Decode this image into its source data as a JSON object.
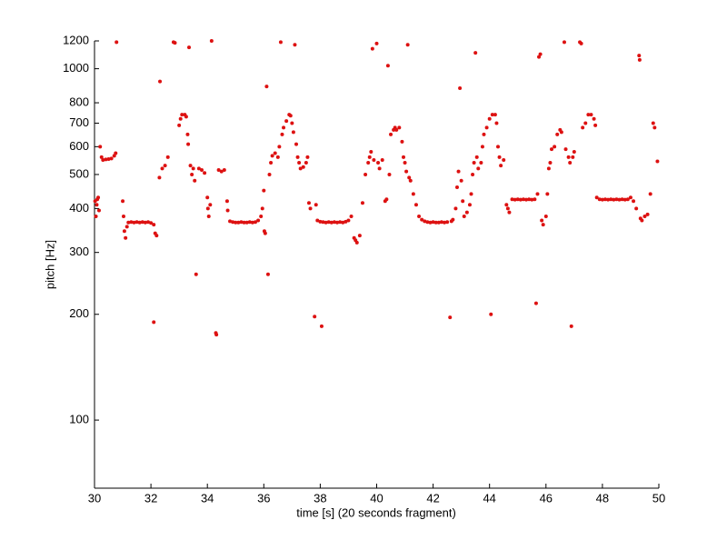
{
  "chart_data": {
    "type": "scatter",
    "xlabel": "time [s] (20 seconds fragment)",
    "ylabel": "pitch [Hz]",
    "color": "#dd1111",
    "log_y": true,
    "xlim": [
      30,
      50
    ],
    "xticks": [
      30,
      32,
      34,
      36,
      38,
      40,
      42,
      44,
      46,
      48,
      50
    ],
    "ylim": [
      64,
      1200
    ],
    "yticks": [
      100,
      200,
      300,
      400,
      500,
      600,
      700,
      800,
      1000,
      1200
    ],
    "x": [
      30.02,
      30.05,
      30.08,
      30.1,
      30.13,
      30.16,
      30.2,
      30.25,
      30.3,
      30.4,
      30.5,
      30.6,
      30.7,
      30.75,
      30.78,
      31.0,
      31.03,
      31.06,
      31.1,
      31.15,
      31.2,
      31.3,
      31.4,
      31.5,
      31.6,
      31.7,
      31.8,
      31.9,
      32.0,
      32.1,
      32.15,
      32.2,
      32.1,
      32.3,
      32.32,
      32.4,
      32.5,
      32.6,
      32.8,
      32.85,
      33.0,
      33.05,
      33.1,
      33.2,
      33.25,
      33.3,
      33.32,
      33.35,
      33.4,
      33.45,
      33.5,
      33.55,
      33.6,
      33.7,
      33.8,
      33.9,
      34.0,
      34.02,
      34.05,
      34.1,
      34.15,
      34.3,
      34.32,
      34.4,
      34.5,
      34.6,
      34.7,
      34.72,
      34.8,
      34.9,
      35.0,
      35.1,
      35.2,
      35.3,
      35.4,
      35.5,
      35.6,
      35.7,
      35.8,
      35.9,
      35.95,
      36.0,
      36.02,
      36.05,
      36.1,
      36.15,
      36.2,
      36.25,
      36.3,
      36.4,
      36.5,
      36.55,
      36.6,
      36.65,
      36.7,
      36.8,
      36.9,
      36.95,
      37.0,
      37.05,
      37.1,
      37.15,
      37.2,
      37.25,
      37.3,
      37.4,
      37.5,
      37.55,
      37.6,
      37.65,
      37.8,
      37.85,
      37.9,
      38.0,
      38.05,
      38.1,
      38.2,
      38.3,
      38.4,
      38.5,
      38.6,
      38.7,
      38.8,
      38.9,
      39.0,
      39.1,
      39.2,
      39.25,
      39.3,
      39.4,
      39.5,
      39.6,
      39.7,
      39.75,
      39.8,
      39.85,
      39.9,
      40.0,
      40.05,
      40.1,
      40.2,
      40.3,
      40.35,
      40.4,
      40.45,
      40.5,
      40.6,
      40.65,
      40.7,
      40.8,
      40.9,
      40.95,
      41.1,
      41.0,
      41.05,
      41.15,
      41.2,
      41.3,
      41.4,
      41.5,
      41.6,
      41.7,
      41.8,
      41.9,
      42.0,
      42.1,
      42.2,
      42.3,
      42.4,
      42.5,
      42.6,
      42.65,
      42.7,
      42.8,
      42.85,
      42.9,
      42.95,
      43.0,
      43.05,
      43.1,
      43.2,
      43.3,
      43.35,
      43.4,
      43.45,
      43.5,
      43.55,
      43.6,
      43.7,
      43.75,
      43.8,
      43.9,
      44.0,
      44.05,
      44.1,
      44.2,
      44.25,
      44.3,
      44.35,
      44.4,
      44.5,
      44.6,
      44.65,
      44.7,
      44.8,
      44.9,
      45.0,
      45.1,
      45.2,
      45.3,
      45.4,
      45.5,
      45.6,
      45.65,
      45.7,
      45.75,
      45.8,
      45.85,
      45.9,
      46.0,
      46.05,
      46.1,
      46.15,
      46.2,
      46.3,
      46.4,
      46.5,
      46.55,
      46.65,
      46.7,
      46.8,
      46.85,
      46.9,
      46.95,
      47.0,
      47.2,
      47.25,
      47.3,
      47.4,
      47.5,
      47.6,
      47.7,
      47.75,
      47.8,
      47.9,
      48.0,
      48.1,
      48.2,
      48.3,
      48.4,
      48.5,
      48.6,
      48.7,
      48.8,
      48.9,
      49.0,
      49.1,
      49.2,
      49.3,
      49.32,
      49.35,
      49.4,
      49.5,
      49.6,
      49.7,
      49.8,
      49.85,
      49.95
    ],
    "values": [
      420,
      380,
      410,
      425,
      430,
      395,
      600,
      560,
      550,
      552,
      553,
      555,
      565,
      575,
      1190,
      420,
      380,
      345,
      330,
      355,
      365,
      366,
      365,
      366,
      365,
      366,
      365,
      366,
      364,
      360,
      340,
      335,
      190,
      490,
      920,
      520,
      530,
      560,
      1190,
      1185,
      690,
      720,
      740,
      740,
      730,
      650,
      610,
      1150,
      530,
      500,
      520,
      480,
      260,
      520,
      515,
      505,
      430,
      400,
      380,
      410,
      1200,
      177,
      175,
      515,
      510,
      515,
      420,
      395,
      368,
      366,
      365,
      365,
      366,
      365,
      365,
      366,
      365,
      366,
      370,
      380,
      400,
      450,
      345,
      340,
      890,
      260,
      500,
      540,
      565,
      575,
      560,
      600,
      1190,
      650,
      680,
      710,
      740,
      735,
      700,
      660,
      1170,
      610,
      560,
      540,
      520,
      525,
      540,
      560,
      415,
      400,
      197,
      410,
      370,
      367,
      185,
      366,
      365,
      366,
      365,
      366,
      365,
      366,
      365,
      367,
      370,
      380,
      330,
      325,
      320,
      335,
      415,
      500,
      540,
      560,
      580,
      1140,
      550,
      1180,
      540,
      520,
      550,
      420,
      425,
      1020,
      500,
      650,
      670,
      680,
      670,
      680,
      620,
      560,
      1170,
      540,
      510,
      490,
      480,
      440,
      410,
      380,
      372,
      368,
      366,
      365,
      366,
      365,
      365,
      366,
      365,
      366,
      196,
      368,
      372,
      400,
      460,
      510,
      880,
      480,
      420,
      380,
      390,
      410,
      440,
      500,
      540,
      1110,
      560,
      520,
      540,
      600,
      650,
      680,
      720,
      200,
      740,
      740,
      700,
      600,
      560,
      530,
      550,
      410,
      400,
      390,
      425,
      424,
      425,
      424,
      425,
      424,
      425,
      424,
      425,
      215,
      440,
      1080,
      1100,
      370,
      360,
      380,
      440,
      520,
      540,
      590,
      600,
      650,
      670,
      660,
      1190,
      590,
      560,
      540,
      185,
      560,
      580,
      1190,
      1180,
      680,
      700,
      740,
      740,
      720,
      690,
      430,
      425,
      424,
      425,
      424,
      425,
      424,
      425,
      424,
      425,
      424,
      425,
      430,
      420,
      400,
      1090,
      1060,
      375,
      370,
      380,
      385,
      440,
      700,
      680,
      545
    ]
  }
}
